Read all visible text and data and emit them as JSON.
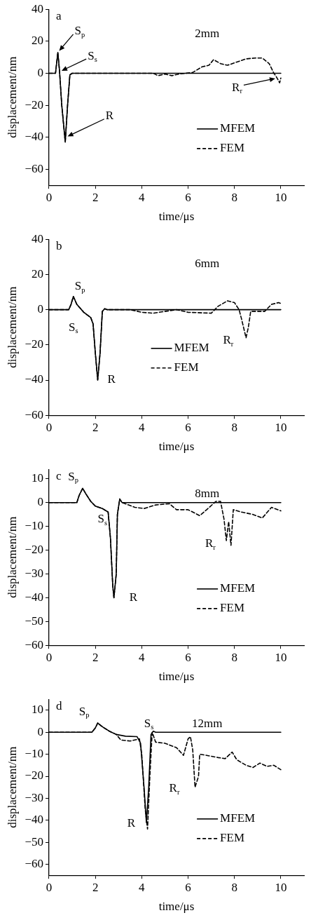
{
  "chart_data": [
    {
      "type": "line",
      "xlabel": "time/μs",
      "ylabel": "displacement/nm",
      "xlim": [
        0,
        11
      ],
      "xticks": [
        0,
        2,
        4,
        6,
        8,
        10
      ],
      "ylim": [
        -70,
        40
      ],
      "yticks": [
        40,
        20,
        0,
        -20,
        -40,
        -60
      ],
      "grid": false,
      "legend": "center right",
      "marker": "none",
      "annotations": [
        "a",
        "2mm",
        {
          "text": "S$_{p}$",
          "x": 0.38,
          "y": 13
        },
        {
          "text": "S$_{s}$",
          "x": 0.46,
          "y": 1
        },
        {
          "text": "R",
          "x": 0.72,
          "y": -40
        },
        {
          "text": "R$_{r}$",
          "x": 9.85,
          "y": -3
        }
      ],
      "series": [
        {
          "name": "MFEM",
          "color": "#000000",
          "line_style": "solid",
          "x": [
            0,
            0.28,
            0.38,
            0.45,
            0.55,
            0.7,
            0.8,
            0.9,
            1.0,
            10
          ],
          "values": [
            0,
            0,
            13,
            2,
            -20,
            -43,
            -20,
            -1,
            0,
            0
          ]
        },
        {
          "name": "FEM",
          "color": "#000000",
          "line_style": "dashed",
          "x": [
            0,
            0.28,
            0.38,
            0.45,
            0.55,
            0.7,
            0.8,
            0.9,
            1.0,
            4.5,
            4.7,
            5.0,
            5.3,
            5.6,
            6.2,
            6.6,
            6.9,
            7.1,
            7.4,
            7.7,
            8.1,
            8.5,
            8.9,
            9.2,
            9.5,
            9.7,
            9.8,
            9.95,
            10
          ],
          "values": [
            0,
            0,
            13,
            2,
            -20,
            -43,
            -20,
            -1,
            0,
            0,
            -1.5,
            -0.5,
            -1.5,
            -0.5,
            0.5,
            4,
            5,
            8.5,
            6,
            5,
            7,
            9,
            9.5,
            9.5,
            6,
            0,
            -2,
            -6,
            -3
          ]
        }
      ]
    },
    {
      "type": "line",
      "xlabel": "time/μs",
      "ylabel": "displacement/nm",
      "xlim": [
        0,
        11
      ],
      "xticks": [
        0,
        2,
        4,
        6,
        8,
        10
      ],
      "ylim": [
        -60,
        40
      ],
      "yticks": [
        40,
        20,
        0,
        -20,
        -40,
        -60
      ],
      "grid": false,
      "legend": "center",
      "marker": "none",
      "annotations": [
        "b",
        "6mm",
        {
          "text": "S$_{p}$",
          "x": 1.05,
          "y": 7.5
        },
        {
          "text": "S$_{s}$",
          "x": 1.5,
          "y": -1.5
        },
        {
          "text": "R",
          "x": 2.1,
          "y": -40
        },
        {
          "text": "R$_{r}$",
          "x": 8.5,
          "y": -16
        }
      ],
      "series": [
        {
          "name": "MFEM",
          "color": "#000000",
          "line_style": "solid",
          "x": [
            0,
            0.85,
            0.95,
            1.05,
            1.2,
            1.5,
            1.8,
            1.9,
            2.0,
            2.1,
            2.2,
            2.3,
            2.4,
            2.5,
            10
          ],
          "values": [
            0,
            0,
            3,
            7.5,
            3,
            -1.5,
            -4.5,
            -8,
            -25,
            -40,
            -25,
            -1,
            0.5,
            0,
            0
          ]
        },
        {
          "name": "FEM",
          "color": "#000000",
          "line_style": "dashed",
          "x": [
            0,
            0.85,
            0.95,
            1.05,
            1.2,
            1.5,
            1.8,
            1.9,
            2.0,
            2.1,
            2.2,
            2.3,
            2.4,
            2.5,
            3.5,
            4,
            4.5,
            5,
            5.5,
            6,
            7,
            7.3,
            7.7,
            8.0,
            8.2,
            8.3,
            8.5,
            8.6,
            8.7,
            9,
            9.3,
            9.6,
            9.9,
            10
          ],
          "values": [
            0,
            0,
            3,
            7.5,
            3,
            -1.5,
            -4.5,
            -8,
            -25,
            -40,
            -25,
            -1,
            0.5,
            0,
            0,
            -1.5,
            -2,
            -1,
            0,
            -1.5,
            -2,
            2,
            5,
            4,
            0,
            -5,
            -16,
            -10,
            -1,
            -1,
            -1,
            3,
            4,
            3.5
          ]
        }
      ]
    },
    {
      "type": "line",
      "xlabel": "time/μs",
      "ylabel": "displacement/nm",
      "xlim": [
        0,
        11
      ],
      "xticks": [
        0,
        2,
        4,
        6,
        8,
        10
      ],
      "ylim": [
        -60,
        14
      ],
      "yticks": [
        10,
        0,
        -10,
        -20,
        -30,
        -40,
        -50,
        -60
      ],
      "grid": false,
      "legend": "center right",
      "marker": "none",
      "annotations": [
        "c",
        "8mm",
        {
          "text": "S$_{p}$",
          "x": 1.45,
          "y": 6
        },
        {
          "text": "S$_{s}$",
          "x": 1.8,
          "y": 0.5
        },
        {
          "text": "R",
          "x": 2.8,
          "y": -40
        },
        {
          "text": "R$_{r}$",
          "x": 7.85,
          "y": -18
        }
      ],
      "series": [
        {
          "name": "MFEM",
          "color": "#000000",
          "line_style": "solid",
          "x": [
            0,
            1.2,
            1.3,
            1.45,
            1.6,
            1.8,
            2.0,
            2.3,
            2.55,
            2.65,
            2.75,
            2.8,
            2.9,
            2.95,
            3.05,
            3.15,
            10
          ],
          "values": [
            0,
            0,
            3,
            6,
            3.5,
            0.5,
            -1.5,
            -2.5,
            -4,
            -15,
            -35,
            -40,
            -30,
            -5,
            1.5,
            0,
            0
          ]
        },
        {
          "name": "FEM",
          "color": "#000000",
          "line_style": "dashed",
          "x": [
            0,
            1.2,
            1.3,
            1.45,
            1.6,
            1.8,
            2.0,
            2.3,
            2.55,
            2.65,
            2.75,
            2.8,
            2.9,
            2.95,
            3.05,
            3.15,
            3.7,
            4.1,
            4.6,
            5.2,
            5.5,
            6,
            6.5,
            6.8,
            7.2,
            7.4,
            7.55,
            7.65,
            7.75,
            7.85,
            7.95,
            8.3,
            8.8,
            9.2,
            9.6,
            10
          ],
          "values": [
            0,
            0,
            3,
            6,
            3.5,
            0.5,
            -1.5,
            -2.5,
            -4,
            -15,
            -35,
            -40,
            -30,
            -5,
            1.5,
            0,
            -2,
            -2.5,
            -1,
            -0.5,
            -3,
            -3,
            -5.5,
            -3,
            0.5,
            0.5,
            -7,
            -16,
            -8,
            -18,
            -3,
            -4,
            -5,
            -6.5,
            -2,
            -3.5
          ]
        }
      ]
    },
    {
      "type": "line",
      "xlabel": "time/μs",
      "ylabel": "displacement/nm",
      "xlim": [
        0,
        11
      ],
      "xticks": [
        0,
        2,
        4,
        6,
        8,
        10
      ],
      "ylim": [
        -65,
        15
      ],
      "yticks": [
        10,
        0,
        -10,
        -20,
        -30,
        -40,
        -50,
        -60
      ],
      "grid": false,
      "legend": "center right",
      "marker": "none",
      "annotations": [
        "d",
        "12mm",
        {
          "text": "S$_{p}$",
          "x": 2.1,
          "y": 4.2
        },
        {
          "text": "S$_{s}$",
          "x": 3.8,
          "y": -2
        },
        {
          "text": "R",
          "x": 4.2,
          "y": -41
        },
        {
          "text": "R$_{r}$",
          "x": 6.3,
          "y": -25
        }
      ],
      "series": [
        {
          "name": "MFEM",
          "color": "#000000",
          "line_style": "solid",
          "x": [
            0,
            1.85,
            2.0,
            2.1,
            2.3,
            2.6,
            2.9,
            3.3,
            3.8,
            3.95,
            4.1,
            4.2,
            4.3,
            4.4,
            4.5,
            4.6,
            10
          ],
          "values": [
            0,
            0,
            2,
            4.2,
            2.5,
            0.5,
            -1,
            -1.8,
            -2,
            -5,
            -25,
            -41,
            -25,
            -1,
            0.5,
            0,
            0
          ]
        },
        {
          "name": "FEM",
          "color": "#000000",
          "line_style": "dashed",
          "x": [
            0,
            1.85,
            2.0,
            2.1,
            2.3,
            2.6,
            2.9,
            3.1,
            3.5,
            3.9,
            4.0,
            4.15,
            4.25,
            4.35,
            4.45,
            4.6,
            5.0,
            5.5,
            5.8,
            6.0,
            6.1,
            6.2,
            6.3,
            6.45,
            6.5,
            6.8,
            7.3,
            7.6,
            7.9,
            8.1,
            8.5,
            8.8,
            9.1,
            9.4,
            9.7,
            10
          ],
          "values": [
            0,
            0,
            2,
            4.2,
            2.5,
            0.5,
            -1,
            -3.5,
            -4,
            -3,
            -10,
            -35,
            -44,
            -20,
            0,
            -4.5,
            -5,
            -7,
            -10.5,
            -3,
            -2,
            -8,
            -25,
            -20,
            -10,
            -10.5,
            -11.5,
            -12,
            -9,
            -12.5,
            -15,
            -16,
            -14,
            -15.5,
            -15,
            -17
          ]
        }
      ]
    }
  ]
}
